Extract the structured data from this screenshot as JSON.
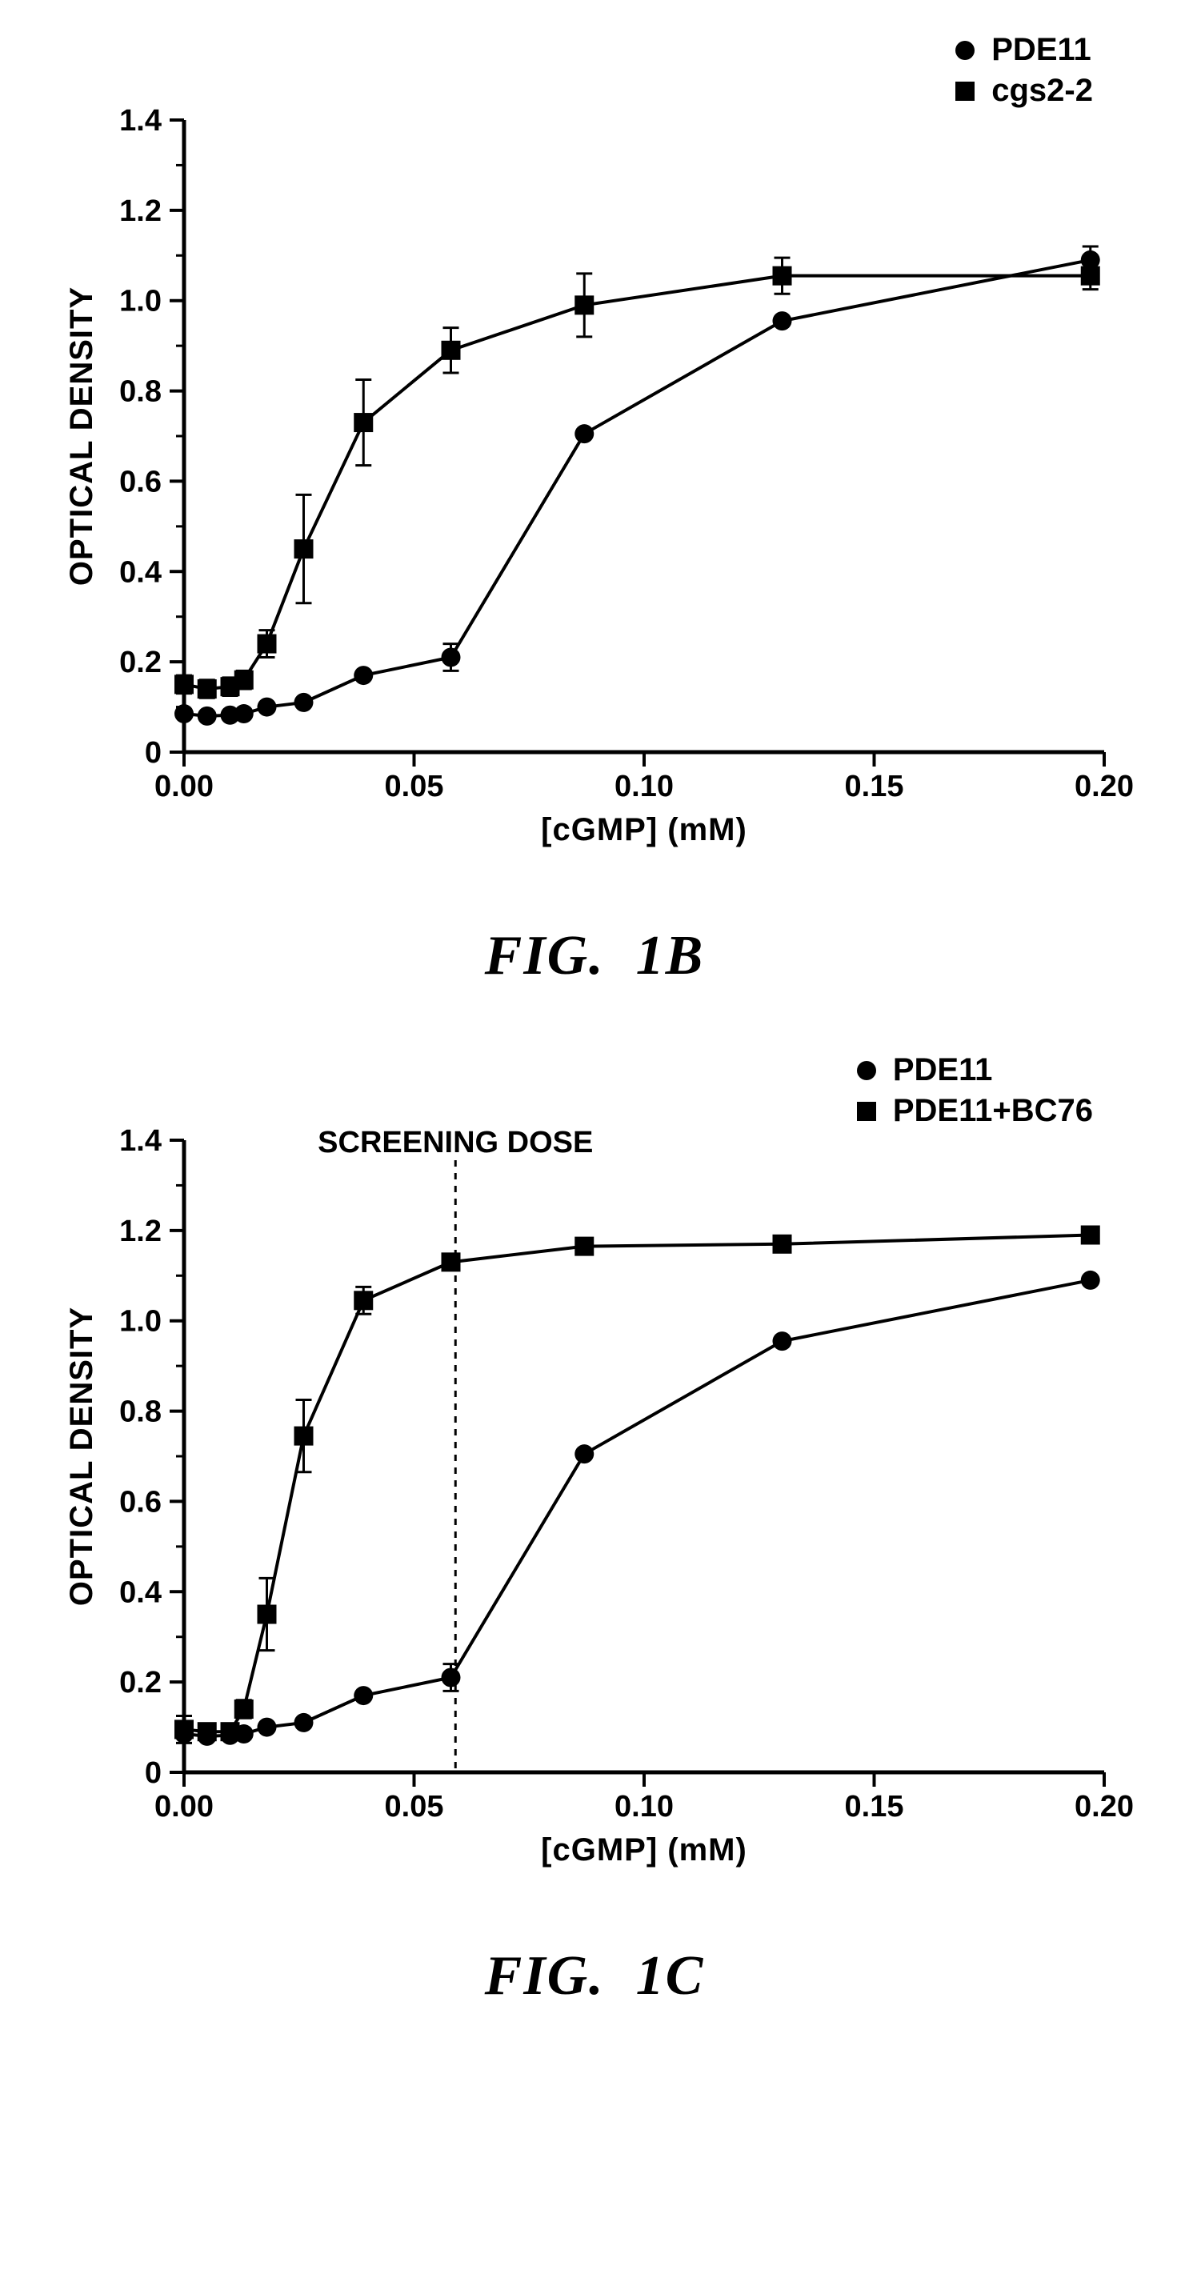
{
  "global": {
    "background_color": "#ffffff",
    "axis_color": "#000000",
    "line_color": "#000000",
    "marker_fill": "#000000",
    "x_label": "[cGMP] (mM)",
    "y_label": "OPTICAL DENSITY",
    "xlim": [
      0,
      0.2
    ],
    "ylim": [
      0,
      1.4
    ],
    "xticks": [
      0.0,
      0.05,
      0.1,
      0.15,
      0.2
    ],
    "xticklabels": [
      "0.00",
      "0.05",
      "0.10",
      "0.15",
      "0.20"
    ],
    "yticks": [
      0,
      0.2,
      0.4,
      0.6,
      0.8,
      1.0,
      1.2,
      1.4
    ],
    "yticklabels": [
      "0",
      "0.2",
      "0.4",
      "0.6",
      "0.8",
      "1.0",
      "1.2",
      "1.4"
    ],
    "axis_line_width": 5,
    "series_line_width": 4,
    "errorbar_line_width": 3,
    "errorbar_cap_half": 10,
    "circle_radius": 12,
    "square_half": 12,
    "tick_fontsize": 38,
    "label_fontsize": 40,
    "caption_fontsize": 70,
    "legend_fontsize": 40
  },
  "panels": [
    {
      "id": "fig1b",
      "caption": "FIG.  1B",
      "legend": [
        {
          "marker": "circle",
          "label": "PDE11"
        },
        {
          "marker": "square",
          "label": "cgs2-2"
        }
      ],
      "annotation": null,
      "series": [
        {
          "name": "PDE11",
          "marker": "circle",
          "x": [
            0.0,
            0.005,
            0.01,
            0.013,
            0.018,
            0.026,
            0.039,
            0.058,
            0.087,
            0.13,
            0.197
          ],
          "y": [
            0.085,
            0.08,
            0.082,
            0.085,
            0.1,
            0.11,
            0.17,
            0.21,
            0.705,
            0.955,
            1.09
          ],
          "err": [
            0.0,
            0.0,
            0.0,
            0.0,
            0.0,
            0.0,
            0.0,
            0.03,
            0.0,
            0.0,
            0.03
          ]
        },
        {
          "name": "cgs2-2",
          "marker": "square",
          "x": [
            0.0,
            0.005,
            0.01,
            0.013,
            0.018,
            0.026,
            0.039,
            0.058,
            0.087,
            0.13,
            0.197
          ],
          "y": [
            0.15,
            0.14,
            0.145,
            0.16,
            0.24,
            0.45,
            0.73,
            0.89,
            0.99,
            1.055,
            1.055
          ],
          "err": [
            0.02,
            0.02,
            0.02,
            0.02,
            0.03,
            0.12,
            0.095,
            0.05,
            0.07,
            0.04,
            0.03
          ]
        }
      ]
    },
    {
      "id": "fig1c",
      "caption": "FIG.  1C",
      "legend": [
        {
          "marker": "circle",
          "label": "PDE11"
        },
        {
          "marker": "square",
          "label": "PDE11+BC76"
        }
      ],
      "annotation": {
        "x": 0.059,
        "label": "SCREENING DOSE",
        "dash": [
          8,
          8
        ]
      },
      "series": [
        {
          "name": "PDE11",
          "marker": "circle",
          "x": [
            0.0,
            0.005,
            0.01,
            0.013,
            0.018,
            0.026,
            0.039,
            0.058,
            0.087,
            0.13,
            0.197
          ],
          "y": [
            0.085,
            0.08,
            0.082,
            0.085,
            0.1,
            0.11,
            0.17,
            0.21,
            0.705,
            0.955,
            1.09
          ],
          "err": [
            0.0,
            0.0,
            0.0,
            0.0,
            0.0,
            0.0,
            0.0,
            0.03,
            0.0,
            0.0,
            0.0
          ]
        },
        {
          "name": "PDE11+BC76",
          "marker": "square",
          "x": [
            0.0,
            0.005,
            0.01,
            0.013,
            0.018,
            0.026,
            0.039,
            0.058,
            0.087,
            0.13,
            0.197
          ],
          "y": [
            0.095,
            0.09,
            0.09,
            0.14,
            0.35,
            0.745,
            1.045,
            1.13,
            1.165,
            1.17,
            1.19
          ],
          "err": [
            0.03,
            0.0,
            0.0,
            0.02,
            0.08,
            0.08,
            0.03,
            0.0,
            0.0,
            0.0,
            0.0
          ]
        }
      ]
    }
  ]
}
